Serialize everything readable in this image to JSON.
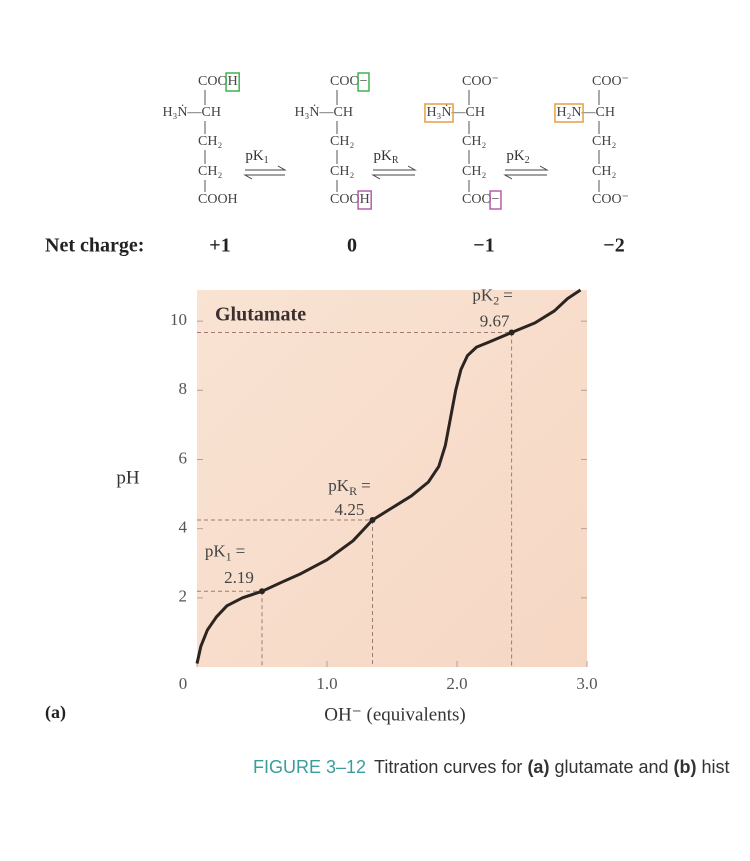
{
  "structures": [
    {
      "lines": [
        [
          {
            "t": "COO"
          },
          {
            "t": "H",
            "box": "#3fb34f"
          }
        ],
        [
          {
            "t": "H₃Ṅ—CH"
          }
        ],
        [
          {
            "t": "CH₂"
          }
        ],
        [
          {
            "t": "CH₂"
          }
        ],
        [
          {
            "t": "COOH"
          }
        ]
      ]
    },
    {
      "lines": [
        [
          {
            "t": "COO"
          },
          {
            "t": "−",
            "box": "#3fb34f"
          }
        ],
        [
          {
            "t": "H₃Ṅ—CH"
          }
        ],
        [
          {
            "t": "CH₂"
          }
        ],
        [
          {
            "t": "CH₂"
          }
        ],
        [
          {
            "t": "COO"
          },
          {
            "t": "H",
            "box": "#b55fa8"
          }
        ]
      ]
    },
    {
      "lines": [
        [
          {
            "t": "COO⁻"
          }
        ],
        [
          {
            "t": "H₃Ṅ",
            "box": "#e4a043"
          },
          {
            "t": "—CH"
          }
        ],
        [
          {
            "t": "CH₂"
          }
        ],
        [
          {
            "t": "CH₂"
          }
        ],
        [
          {
            "t": "COO"
          },
          {
            "t": "−",
            "box": "#b55fa8"
          }
        ]
      ]
    },
    {
      "lines": [
        [
          {
            "t": "COO⁻"
          }
        ],
        [
          {
            "t": "H₂N",
            "box": "#e4a043"
          },
          {
            "t": "—CH"
          }
        ],
        [
          {
            "t": "CH₂"
          }
        ],
        [
          {
            "t": "CH₂"
          }
        ],
        [
          {
            "t": "COO⁻"
          }
        ]
      ]
    }
  ],
  "equilibria": [
    {
      "label": "pK",
      "sub": "1"
    },
    {
      "label": "pK",
      "sub": "R"
    },
    {
      "label": "pK",
      "sub": "2"
    }
  ],
  "net_charge_label": "Net charge:",
  "net_charges": [
    "+1",
    "0",
    "−1",
    "−2"
  ],
  "chart_data": {
    "type": "line",
    "title": "Glutamate",
    "x_label": "OH⁻ (equivalents)",
    "y_label": "pH",
    "x": [
      0,
      0.03,
      0.08,
      0.15,
      0.23,
      0.35,
      0.5,
      0.65,
      0.8,
      1.0,
      1.2,
      1.35,
      1.5,
      1.65,
      1.78,
      1.86,
      1.91,
      1.95,
      1.99,
      2.03,
      2.08,
      2.15,
      2.25,
      2.42,
      2.6,
      2.75,
      2.85,
      2.95
    ],
    "values": [
      0.1,
      0.6,
      1.07,
      1.45,
      1.77,
      2.0,
      2.19,
      2.45,
      2.7,
      3.1,
      3.65,
      4.25,
      4.6,
      4.95,
      5.35,
      5.8,
      6.4,
      7.2,
      8.0,
      8.6,
      9.0,
      9.25,
      9.4,
      9.67,
      9.95,
      10.3,
      10.65,
      10.9
    ],
    "color": "#2b2420",
    "xlim": [
      0,
      3
    ],
    "ylim": [
      0,
      10.9
    ],
    "xticks": [
      0,
      {
        "value": 1,
        "label": "1.0"
      },
      {
        "value": 2,
        "label": "2.0"
      },
      {
        "value": 3,
        "label": "3.0"
      }
    ],
    "yticks": [
      2,
      4,
      6,
      8,
      10
    ],
    "points": [
      {
        "label": "pK",
        "sub": "1",
        "eq": "=",
        "x": 0.5,
        "value": 2.19
      },
      {
        "label": "pK",
        "sub": "R",
        "eq": "=",
        "x": 1.35,
        "value": 4.25
      },
      {
        "label": "pK",
        "sub": "2",
        "eq": "=",
        "x": 2.42,
        "value": 9.67
      }
    ]
  },
  "panel_label": "(a)",
  "caption": {
    "figure": "FIGURE 3–12",
    "segments": [
      {
        "t": "Titration curves for "
      },
      {
        "t": "(a)",
        "bold": true
      },
      {
        "t": " glutamate and "
      },
      {
        "t": "(b)",
        "bold": true
      },
      {
        "t": " hist"
      }
    ]
  }
}
